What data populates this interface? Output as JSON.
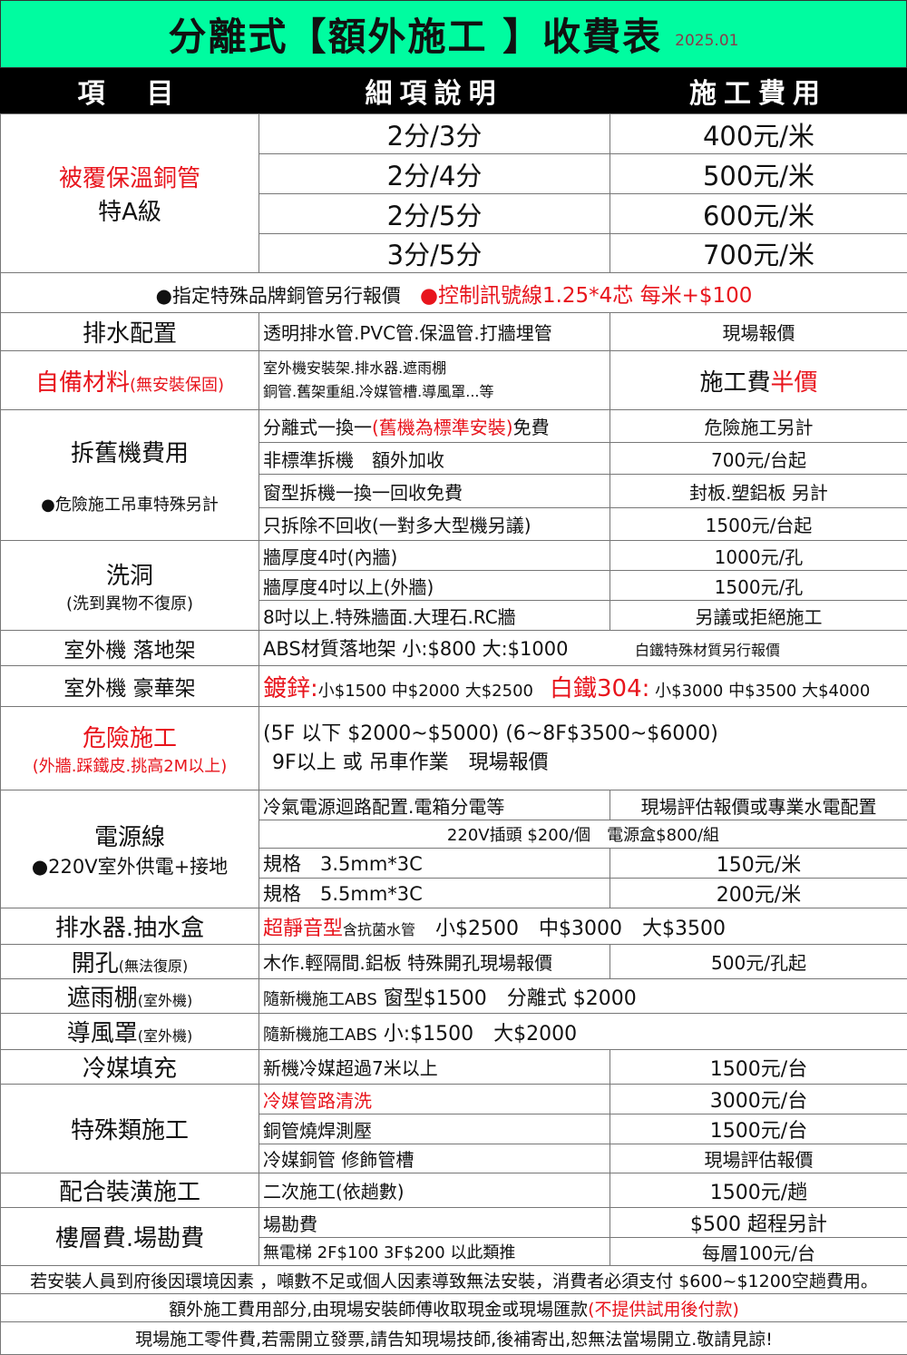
{
  "title": {
    "text": "分離式【額外施工 】收費表",
    "date": "2025.01",
    "bg": "#00FCA0"
  },
  "header": [
    "項　目",
    "細項說明",
    "施工費用"
  ],
  "copper": {
    "name": "被覆保溫銅管",
    "grade": "特A級",
    "rows": [
      [
        "2分/3分",
        "400元/米"
      ],
      [
        "2分/4分",
        "500元/米"
      ],
      [
        "2分/5分",
        "600元/米"
      ],
      [
        "3分/5分",
        "700元/米"
      ]
    ]
  },
  "note": {
    "a": "●指定特殊品牌銅管另行報價",
    "b": "●控制訊號線1.25*4芯 每米+$100"
  },
  "drain": {
    "name": "排水配置",
    "desc": "透明排水管.PVC管.保溫管.打牆埋管",
    "price": "現場報價"
  },
  "self": {
    "name": "自備材料",
    "sub": "(無安裝保固)",
    "desc1": "室外機安裝架.排水器.遮雨棚",
    "desc2": "銅管.舊架重組.冷媒管槽.導風罩...等",
    "price_a": "施工費",
    "price_b": "半價"
  },
  "remove": {
    "name": "拆舊機費用",
    "note": "●危險施工吊車特殊另計",
    "rows": [
      {
        "d1": "分離式一換一",
        "d2": "(舊機為標準安裝)",
        "d3": "免費",
        "p": "危險施工另計"
      },
      {
        "d1": "非標準拆機　額外加收",
        "p": "700元/台起"
      },
      {
        "d1": "窗型拆機一換一回收免費",
        "p": "封板.塑鋁板 另計"
      },
      {
        "d1": "只拆除不回收(一對多大型機另議)",
        "p": "1500元/台起"
      }
    ]
  },
  "hole": {
    "name": "洗洞",
    "sub": "(洗到異物不復原)",
    "rows": [
      [
        "牆厚度4吋(內牆)",
        "1000元/孔"
      ],
      [
        "牆厚度4吋以上(外牆)",
        "1500元/孔"
      ],
      [
        "8吋以上.特殊牆面.大理石.RC牆",
        "另議或拒絕施工"
      ]
    ]
  },
  "stand": {
    "name": "室外機 落地架",
    "desc": "ABS材質落地架 小:$800 大:$1000",
    "price": "白鐵特殊材質另行報價"
  },
  "lux": {
    "name": "室外機 豪華架",
    "a": "鍍鋅:",
    "b": "小$1500 中$2000 大$2500",
    "c": "白鐵304:",
    "d": " 小$3000 中$3500 大$4000"
  },
  "danger": {
    "name": "危險施工",
    "sub": "(外牆.踩鐵皮.挑高2M以上)",
    "l1": "(5F 以下 $2000~$5000) (6~8F$3500~$6000)",
    "l2": "9F以上 或 吊車作業　現場報價"
  },
  "power": {
    "name": "電源線",
    "sub": "●220V室外供電+接地",
    "r1d": "冷氣電源迴路配置.電箱分電等",
    "r1p": "現場評估報價或專業水電配置",
    "r2": "220V插頭 $200/個　電源盒$800/組",
    "r3d": "規格　3.5mm*3C",
    "r3p": "150元/米",
    "r4d": "規格　5.5mm*3C",
    "r4p": "200元/米"
  },
  "pump": {
    "name": "排水器.抽水盒",
    "a": "超靜音型",
    "b": "含抗菌水管",
    "c": "　小$2500　中$3000　大$3500"
  },
  "drill": {
    "name": "開孔",
    "sub": "(無法復原)",
    "desc": "木作.輕隔間.鋁板 特殊開孔現場報價",
    "price": "500元/孔起"
  },
  "rain": {
    "name": "遮雨棚",
    "sub": "(室外機)",
    "a": "隨新機施工ABS",
    "b": " 窗型$1500　分離式 $2000"
  },
  "wind": {
    "name": "導風罩",
    "sub": "(室外機)",
    "a": "隨新機施工ABS",
    "b": " 小:$1500　大$2000"
  },
  "refill": {
    "name": "冷媒填充",
    "desc": "新機冷媒超過7米以上",
    "price": "1500元/台"
  },
  "special": {
    "name": "特殊類施工",
    "rows": [
      {
        "d": "冷媒管路清洗",
        "p": "3000元/台",
        "red": true
      },
      {
        "d": "銅管燒焊測壓",
        "p": "1500元/台"
      },
      {
        "d": "冷媒銅管 修飾管槽",
        "p": "現場評估報價"
      }
    ]
  },
  "decor": {
    "name": "配合裝潢施工",
    "desc": "二次施工(依趟數)",
    "price": "1500元/趟"
  },
  "floor": {
    "name": "樓層費.場勘費",
    "r1d": "場勘費",
    "r1p": "$500 超程另計",
    "r2d": "無電梯 2F$100 3F$200 以此類推",
    "r2p": "每層100元/台"
  },
  "footer": {
    "l1": "若安裝人員到府後因環境因素 ，噸數不足或個人因素導致無法安裝，消費者必須支付 $600~$1200空趟費用。",
    "l2a": "額外施工費用部分,由現場安裝師傅收取現金或現場匯款",
    "l2b": "(不提供試用後付款)",
    "l3": "現場施工零件費,若需開立發票,請告知現場技師,後補寄出,恕無法當場開立.敬請見諒!"
  }
}
